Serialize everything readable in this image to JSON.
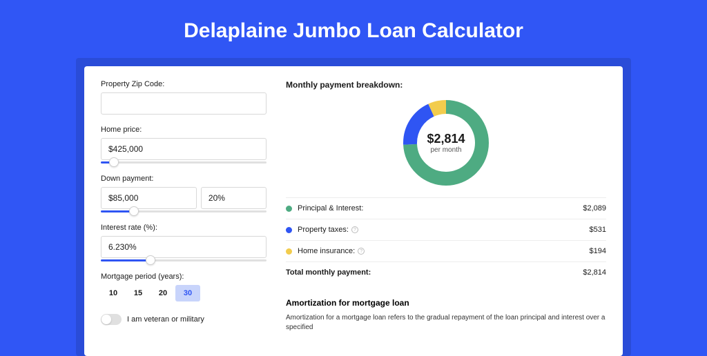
{
  "page": {
    "title": "Delaplaine Jumbo Loan Calculator",
    "bg_color": "#3056f5",
    "inner_bg_color": "#2a4cd8",
    "card_bg": "#ffffff"
  },
  "form": {
    "zip": {
      "label": "Property Zip Code:",
      "value": ""
    },
    "home_price": {
      "label": "Home price:",
      "value": "$425,000",
      "slider_pct": 8
    },
    "down_payment": {
      "label": "Down payment:",
      "value": "$85,000",
      "pct_value": "20%",
      "slider_pct": 20
    },
    "interest_rate": {
      "label": "Interest rate (%):",
      "value": "6.230%",
      "slider_pct": 30
    },
    "mortgage_period": {
      "label": "Mortgage period (years):",
      "options": [
        "10",
        "15",
        "20",
        "30"
      ],
      "selected": "30"
    },
    "veteran": {
      "label": "I am veteran or military",
      "checked": false
    }
  },
  "breakdown": {
    "title": "Monthly payment breakdown:",
    "donut": {
      "amount": "$2,814",
      "sub": "per month",
      "slices": [
        {
          "key": "principal_interest",
          "color": "#4eab82",
          "pct": 74.2
        },
        {
          "key": "property_taxes",
          "color": "#2f55f3",
          "pct": 18.9
        },
        {
          "key": "home_insurance",
          "color": "#f2cc4d",
          "pct": 6.9
        }
      ],
      "thickness": 20
    },
    "legend": [
      {
        "dot": "#4eab82",
        "label": "Principal & Interest:",
        "info": false,
        "value": "$2,089"
      },
      {
        "dot": "#2f55f3",
        "label": "Property taxes:",
        "info": true,
        "value": "$531"
      },
      {
        "dot": "#f2cc4d",
        "label": "Home insurance:",
        "info": true,
        "value": "$194"
      }
    ],
    "total": {
      "label": "Total monthly payment:",
      "value": "$2,814"
    }
  },
  "amortization": {
    "title": "Amortization for mortgage loan",
    "text": "Amortization for a mortgage loan refers to the gradual repayment of the loan principal and interest over a specified"
  }
}
